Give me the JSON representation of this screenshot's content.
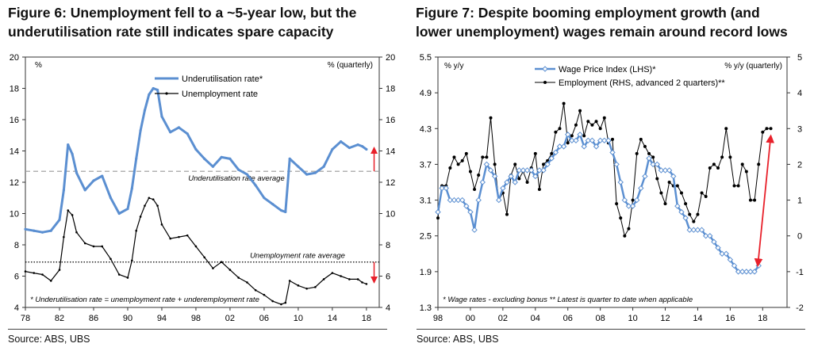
{
  "left": {
    "title_line1": "Figure 6: Unemployment fell to a ~5-year low, but the",
    "title_line2": "underutilisation rate still indicates spare capacity",
    "source": "Source:  ABS, UBS",
    "left_unit": "%",
    "right_unit": "% (quarterly)",
    "footnote": "* Underutilisation rate = unemployment rate + underemployment rate",
    "avg_label_1": "Underutilisation rate average",
    "avg_label_2": "Unemployment rate average"
  },
  "right": {
    "title_line1": "Figure 7: Despite booming employment growth (and",
    "title_line2": "lower unemployment) wages remain around record lows",
    "source": "Source:  ABS, UBS",
    "left_unit": "% y/y",
    "right_unit": "% y/y (quarterly)",
    "footnote": "* Wage rates - excluding bonus ** Latest is quarter to date when applicable"
  },
  "colors": {
    "blue": "#5b8fd1",
    "black": "#000000",
    "red": "#e8202a",
    "avg_grey": "#999999"
  },
  "chart_data": [
    {
      "type": "line",
      "x_tick_labels": [
        "78",
        "82",
        "86",
        "90",
        "94",
        "98",
        "02",
        "06",
        "10",
        "14",
        "18"
      ],
      "x_ticks": [
        1978,
        1982,
        1986,
        1990,
        1994,
        1998,
        2002,
        2006,
        2010,
        2014,
        2018
      ],
      "xlim": [
        1978,
        2019.5
      ],
      "ylim": [
        4,
        20
      ],
      "y_ticks": [
        4,
        6,
        8,
        10,
        12,
        14,
        16,
        18,
        20
      ],
      "legend": "top-center",
      "averages": [
        12.7,
        6.9
      ],
      "series": [
        {
          "name": "Underutilisation rate*",
          "x": [
            1978,
            1979,
            1980,
            1981,
            1982,
            1982.5,
            1983,
            1983.5,
            1984,
            1985,
            1986,
            1987,
            1988,
            1989,
            1990,
            1990.5,
            1991,
            1991.5,
            1992,
            1992.5,
            1993,
            1993.5,
            1994,
            1995,
            1996,
            1997,
            1998,
            1999,
            2000,
            2001,
            2002,
            2003,
            2004,
            2005,
            2006,
            2007,
            2008,
            2008.5,
            2009,
            2010,
            2011,
            2012,
            2013,
            2014,
            2015,
            2016,
            2017,
            2017.5,
            2018
          ],
          "values": [
            9.0,
            8.9,
            8.8,
            8.9,
            9.6,
            11.5,
            14.4,
            13.8,
            12.6,
            11.5,
            12.1,
            12.4,
            11.0,
            10.0,
            10.3,
            11.6,
            13.5,
            15.3,
            16.6,
            17.6,
            18.0,
            17.9,
            16.2,
            15.2,
            15.5,
            15.1,
            14.1,
            13.5,
            13.0,
            13.6,
            13.5,
            12.8,
            12.5,
            11.8,
            11.0,
            10.6,
            10.2,
            10.1,
            13.5,
            13.0,
            12.5,
            12.6,
            13.0,
            14.1,
            14.6,
            14.2,
            14.4,
            14.3,
            14.1
          ]
        },
        {
          "name": "Unemployment rate",
          "x": [
            1978,
            1979,
            1980,
            1981,
            1982,
            1982.5,
            1983,
            1983.5,
            1984,
            1985,
            1986,
            1987,
            1988,
            1989,
            1990,
            1990.5,
            1991,
            1991.5,
            1992,
            1992.5,
            1993,
            1993.5,
            1994,
            1995,
            1996,
            1997,
            1998,
            1999,
            2000,
            2001,
            2002,
            2003,
            2004,
            2005,
            2006,
            2007,
            2008,
            2008.5,
            2009,
            2010,
            2011,
            2012,
            2013,
            2014,
            2015,
            2016,
            2017,
            2017.5,
            2018
          ],
          "values": [
            6.3,
            6.2,
            6.1,
            5.7,
            6.4,
            8.5,
            10.2,
            9.9,
            8.8,
            8.1,
            7.9,
            7.9,
            7.1,
            6.1,
            5.9,
            7.0,
            8.9,
            9.8,
            10.5,
            11.0,
            10.9,
            10.5,
            9.3,
            8.4,
            8.5,
            8.6,
            7.9,
            7.2,
            6.5,
            6.9,
            6.4,
            5.9,
            5.6,
            5.1,
            4.8,
            4.4,
            4.2,
            4.3,
            5.7,
            5.4,
            5.2,
            5.3,
            5.8,
            6.2,
            6.0,
            5.8,
            5.8,
            5.6,
            5.5
          ]
        }
      ]
    },
    {
      "type": "line",
      "x_tick_labels": [
        "98",
        "00",
        "02",
        "04",
        "06",
        "08",
        "10",
        "12",
        "14",
        "16",
        "18"
      ],
      "x_ticks": [
        1998,
        2000,
        2002,
        2004,
        2006,
        2008,
        2010,
        2012,
        2014,
        2016,
        2018
      ],
      "xlim": [
        1998,
        2019.5
      ],
      "ylim_left": [
        1.3,
        5.5
      ],
      "y_ticks_left": [
        "1.3",
        "1.9",
        "2.5",
        "3.1",
        "3.7",
        "4.3",
        "4.9",
        "5.5"
      ],
      "ylim_right": [
        -2,
        5
      ],
      "y_ticks_right": [
        -2,
        -1,
        0,
        1,
        2,
        3,
        4,
        5
      ],
      "legend": "top-center",
      "series": [
        {
          "name": "Wage Price Index (LHS)*",
          "axis": "left",
          "x": [
            1998,
            1998.25,
            1998.5,
            1998.75,
            1999,
            1999.25,
            1999.5,
            1999.75,
            2000,
            2000.25,
            2000.5,
            2000.75,
            2001,
            2001.25,
            2001.5,
            2001.75,
            2002,
            2002.25,
            2002.5,
            2002.75,
            2003,
            2003.25,
            2003.5,
            2003.75,
            2004,
            2004.25,
            2004.5,
            2004.75,
            2005,
            2005.25,
            2005.5,
            2005.75,
            2006,
            2006.25,
            2006.5,
            2006.75,
            2007,
            2007.25,
            2007.5,
            2007.75,
            2008,
            2008.25,
            2008.5,
            2008.75,
            2009,
            2009.25,
            2009.5,
            2009.75,
            2010,
            2010.25,
            2010.5,
            2010.75,
            2011,
            2011.25,
            2011.5,
            2011.75,
            2012,
            2012.25,
            2012.5,
            2012.75,
            2013,
            2013.25,
            2013.5,
            2013.75,
            2014,
            2014.25,
            2014.5,
            2014.75,
            2015,
            2015.25,
            2015.5,
            2015.75,
            2016,
            2016.25,
            2016.5,
            2016.75,
            2017,
            2017.25,
            2017.5,
            2017.75
          ],
          "values": [
            2.9,
            3.3,
            3.3,
            3.1,
            3.1,
            3.1,
            3.1,
            3.0,
            2.9,
            2.6,
            3.1,
            3.4,
            3.7,
            3.6,
            3.5,
            3.1,
            3.3,
            3.4,
            3.5,
            3.4,
            3.6,
            3.6,
            3.6,
            3.6,
            3.5,
            3.6,
            3.6,
            3.7,
            3.8,
            3.9,
            4.0,
            4.0,
            4.2,
            4.1,
            4.1,
            4.2,
            4.0,
            4.1,
            4.1,
            4.0,
            4.1,
            4.1,
            4.1,
            3.9,
            3.7,
            3.4,
            3.1,
            3.0,
            3.0,
            3.1,
            3.3,
            3.5,
            3.8,
            3.7,
            3.7,
            3.6,
            3.6,
            3.6,
            3.5,
            3.0,
            2.9,
            2.8,
            2.6,
            2.6,
            2.6,
            2.6,
            2.5,
            2.5,
            2.4,
            2.3,
            2.2,
            2.2,
            2.1,
            2.0,
            1.9,
            1.9,
            1.9,
            1.9,
            1.9,
            2.0
          ]
        },
        {
          "name": "Employment (RHS, advanced 2 quarters)**",
          "axis": "right",
          "x": [
            1998,
            1998.25,
            1998.5,
            1998.75,
            1999,
            1999.25,
            1999.5,
            1999.75,
            2000,
            2000.25,
            2000.5,
            2000.75,
            2001,
            2001.25,
            2001.5,
            2001.75,
            2002,
            2002.25,
            2002.5,
            2002.75,
            2003,
            2003.25,
            2003.5,
            2003.75,
            2004,
            2004.25,
            2004.5,
            2004.75,
            2005,
            2005.25,
            2005.5,
            2005.75,
            2006,
            2006.25,
            2006.5,
            2006.75,
            2007,
            2007.25,
            2007.5,
            2007.75,
            2008,
            2008.25,
            2008.5,
            2008.75,
            2009,
            2009.25,
            2009.5,
            2009.75,
            2010,
            2010.25,
            2010.5,
            2010.75,
            2011,
            2011.25,
            2011.5,
            2011.75,
            2012,
            2012.25,
            2012.5,
            2012.75,
            2013,
            2013.25,
            2013.5,
            2013.75,
            2014,
            2014.25,
            2014.5,
            2014.75,
            2015,
            2015.25,
            2015.5,
            2015.75,
            2016,
            2016.25,
            2016.5,
            2016.75,
            2017,
            2017.25,
            2017.5,
            2017.75,
            2018,
            2018.25,
            2018.5
          ],
          "values": [
            0.5,
            1.4,
            1.4,
            1.9,
            2.2,
            2.0,
            2.1,
            2.3,
            1.8,
            1.3,
            1.7,
            2.2,
            2.2,
            3.3,
            2.0,
            1.0,
            1.2,
            0.6,
            1.7,
            2.0,
            1.6,
            1.8,
            1.5,
            1.9,
            2.3,
            1.3,
            2.0,
            2.1,
            2.3,
            2.9,
            3.0,
            3.7,
            2.6,
            2.8,
            3.1,
            3.5,
            2.8,
            3.2,
            3.1,
            3.2,
            3.0,
            3.3,
            2.6,
            2.7,
            0.9,
            0.5,
            0.0,
            0.2,
            1.0,
            2.3,
            2.7,
            2.5,
            2.3,
            2.2,
            1.6,
            1.2,
            0.9,
            1.5,
            1.4,
            1.4,
            1.2,
            0.9,
            0.6,
            0.4,
            0.6,
            1.2,
            1.1,
            1.9,
            2.0,
            1.9,
            2.2,
            3.0,
            2.2,
            1.4,
            1.4,
            2.0,
            1.8,
            1.0,
            1.0,
            2.0,
            2.9,
            3.0,
            3.0
          ]
        }
      ]
    }
  ]
}
